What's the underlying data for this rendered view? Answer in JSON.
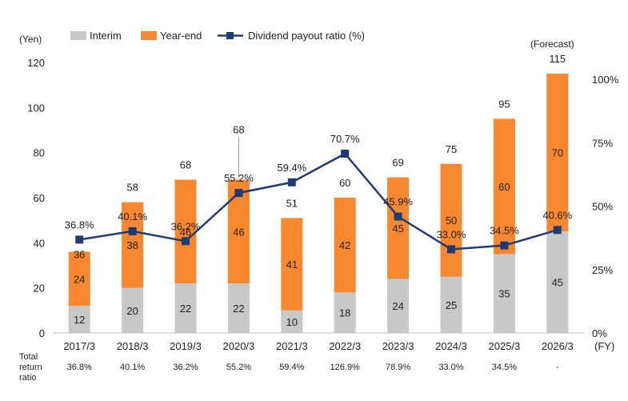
{
  "chart_data": {
    "type": "bar",
    "stacked": true,
    "legend": [
      "Interim",
      "Year-end",
      "Dividend payout ratio (%)"
    ],
    "categories": [
      "2017/3",
      "2018/3",
      "2019/3",
      "2020/3",
      "2021/3",
      "2022/3",
      "2023/3",
      "2024/3",
      "2025/3",
      "2026/3"
    ],
    "series": [
      {
        "name": "Interim",
        "type": "bar",
        "color": "#c8c8c8",
        "values": [
          12,
          20,
          22,
          22,
          10,
          18,
          24,
          25,
          35,
          45
        ]
      },
      {
        "name": "Year-end",
        "type": "bar",
        "color": "#f7882f",
        "values": [
          24,
          38,
          46,
          46,
          41,
          42,
          45,
          50,
          60,
          70
        ]
      },
      {
        "name": "Dividend payout ratio (%)",
        "type": "line",
        "axis": "right",
        "color": "#1f3b73",
        "values": [
          36.8,
          40.1,
          36.2,
          55.2,
          59.4,
          70.7,
          45.9,
          33.0,
          34.5,
          40.6
        ]
      }
    ],
    "totals": [
      "36",
      "58",
      "68",
      "68",
      "51",
      "60",
      "69",
      "75",
      "95",
      "115"
    ],
    "ratio_labels": [
      "36.8%",
      "40.1%",
      "36.2%",
      "55.2%",
      "59.4%",
      "70.7%",
      "45.9%",
      "33.0%",
      "34.5%",
      "40.6%"
    ],
    "left_axis": {
      "label": "(Yen)",
      "min": 0,
      "max": 120,
      "ticks": [
        "0",
        "20",
        "40",
        "60",
        "80",
        "100",
        "120"
      ]
    },
    "right_axis": {
      "min": 0,
      "max": 106.67,
      "ticks": [
        "0%",
        "25%",
        "50%",
        "75%",
        "100%"
      ]
    },
    "x_unit": "(FY)",
    "forecast_label": "(Forecast)",
    "total_return": {
      "label_lines": [
        "Total",
        "return",
        "ratio"
      ],
      "values": [
        "36.8%",
        "40.1%",
        "36.2%",
        "55.2%",
        "59.4%",
        "126.9%",
        "78.9%",
        "33.0%",
        "34.5%",
        "-"
      ]
    }
  }
}
